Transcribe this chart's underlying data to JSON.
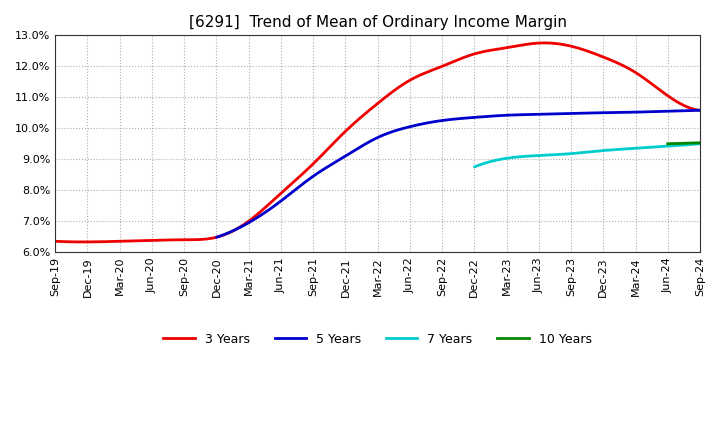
{
  "title": "[6291]  Trend of Mean of Ordinary Income Margin",
  "ylim": [
    0.06,
    0.13
  ],
  "yticks": [
    0.06,
    0.07,
    0.08,
    0.09,
    0.1,
    0.11,
    0.12,
    0.13
  ],
  "ytick_labels": [
    "6.0%",
    "7.0%",
    "8.0%",
    "9.0%",
    "10.0%",
    "11.0%",
    "12.0%",
    "13.0%"
  ],
  "background_color": "#ffffff",
  "grid_color": "#999999",
  "series": {
    "3 Years": {
      "color": "#ee0000",
      "x": [
        0,
        1,
        2,
        3,
        4,
        5,
        6,
        7,
        8,
        9,
        10,
        11,
        12,
        13,
        14,
        15,
        16,
        17,
        18,
        19,
        20
      ],
      "y": [
        0.0635,
        0.0633,
        0.0635,
        0.0638,
        0.064,
        0.0648,
        0.07,
        0.079,
        0.0885,
        0.099,
        0.108,
        0.1155,
        0.12,
        0.124,
        0.126,
        0.1275,
        0.1265,
        0.123,
        0.118,
        0.1105,
        0.1058
      ]
    },
    "5 Years": {
      "color": "#0000cc",
      "x": [
        5,
        6,
        7,
        8,
        9,
        10,
        11,
        12,
        13,
        14,
        15,
        16,
        17,
        18,
        19,
        20
      ],
      "y": [
        0.0648,
        0.0695,
        0.0765,
        0.0845,
        0.091,
        0.097,
        0.1005,
        0.1025,
        0.1035,
        0.1042,
        0.1045,
        0.1048,
        0.105,
        0.1052,
        0.1055,
        0.1058
      ]
    },
    "7 Years": {
      "color": "#00cccc",
      "x": [
        13,
        14,
        15,
        16,
        17,
        18,
        19,
        20
      ],
      "y": [
        0.0875,
        0.0903,
        0.0912,
        0.0918,
        0.0928,
        0.0935,
        0.0942,
        0.095
      ]
    },
    "10 Years": {
      "color": "#008800",
      "x": [
        19,
        20
      ],
      "y": [
        0.095,
        0.0953
      ]
    }
  },
  "xtick_labels": [
    "Sep-19",
    "Dec-19",
    "Mar-20",
    "Jun-20",
    "Sep-20",
    "Dec-20",
    "Mar-21",
    "Jun-21",
    "Sep-21",
    "Dec-21",
    "Mar-22",
    "Jun-22",
    "Sep-22",
    "Dec-22",
    "Mar-23",
    "Jun-23",
    "Sep-23",
    "Dec-23",
    "Mar-24",
    "Jun-24",
    "Sep-24"
  ],
  "legend_entries": [
    "3 Years",
    "5 Years",
    "7 Years",
    "10 Years"
  ],
  "legend_colors": [
    "#ee0000",
    "#0000cc",
    "#00cccc",
    "#008800"
  ],
  "title_fontsize": 11,
  "tick_fontsize": 8,
  "legend_fontsize": 9
}
